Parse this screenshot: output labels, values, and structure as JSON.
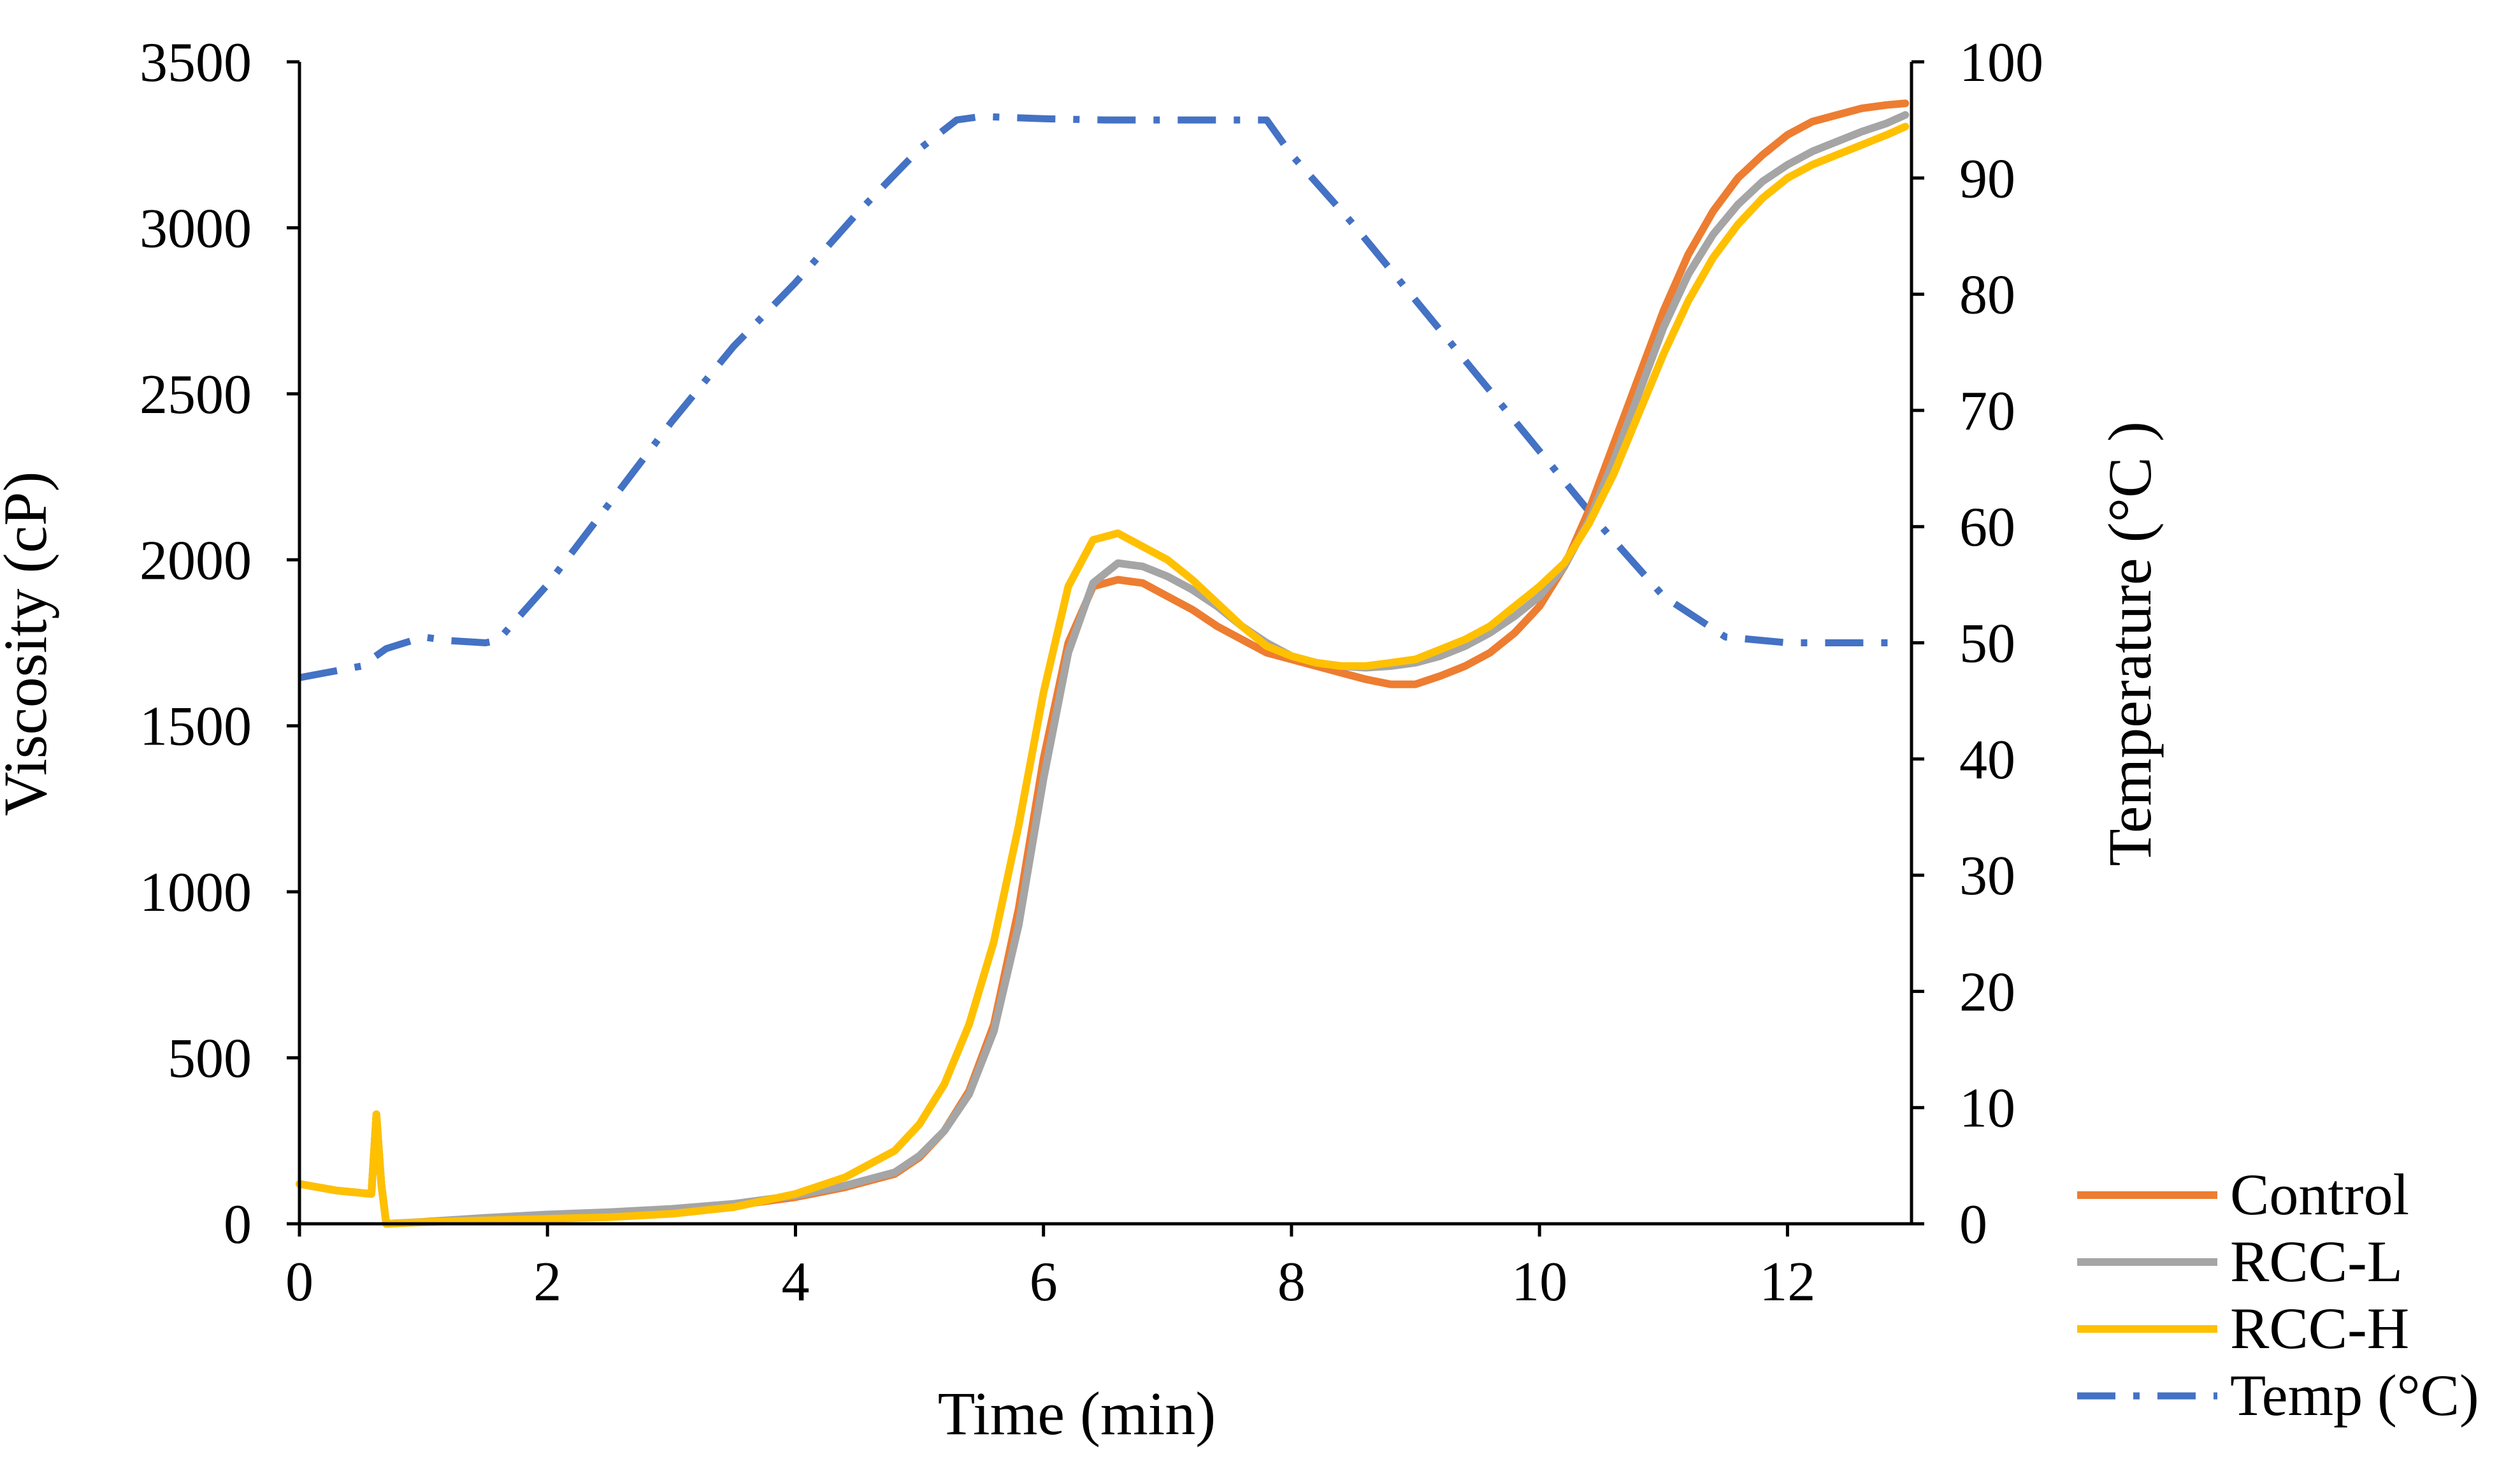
{
  "chart_data": {
    "type": "line",
    "title": "",
    "xlabel": "Time (min)",
    "ylabel": "Viscosity (cP)",
    "y2label": "Temperature (°C )",
    "xlim": [
      0,
      13
    ],
    "ylim": [
      0,
      3500
    ],
    "y2lim": [
      0,
      100
    ],
    "x_ticks": [
      0,
      2,
      4,
      6,
      8,
      10,
      12
    ],
    "y_ticks": [
      0,
      500,
      1000,
      1500,
      2000,
      2500,
      3000,
      3500
    ],
    "y2_ticks": [
      0,
      10,
      20,
      30,
      40,
      50,
      60,
      70,
      80,
      90,
      100
    ],
    "grid": false,
    "legend_position": "bottom-right",
    "series": [
      {
        "name": "Control",
        "axis": "left",
        "color": "#ED7D31",
        "dash": "solid",
        "x": [
          0,
          0.3,
          0.58,
          0.62,
          0.66,
          0.7,
          1.0,
          1.5,
          2.0,
          2.5,
          3.0,
          3.5,
          4.0,
          4.4,
          4.8,
          5.0,
          5.2,
          5.4,
          5.6,
          5.8,
          6.0,
          6.2,
          6.4,
          6.6,
          6.8,
          7.0,
          7.2,
          7.4,
          7.6,
          7.8,
          8.0,
          8.2,
          8.4,
          8.6,
          8.8,
          9.0,
          9.2,
          9.4,
          9.6,
          9.8,
          10.0,
          10.2,
          10.4,
          10.6,
          10.8,
          11.0,
          11.2,
          11.4,
          11.6,
          11.8,
          12.0,
          12.2,
          12.4,
          12.6,
          12.8,
          12.95
        ],
        "y": [
          120,
          100,
          90,
          330,
          120,
          0,
          5,
          15,
          25,
          30,
          40,
          55,
          80,
          110,
          150,
          200,
          280,
          400,
          600,
          950,
          1400,
          1750,
          1920,
          1940,
          1930,
          1890,
          1850,
          1800,
          1760,
          1720,
          1700,
          1680,
          1660,
          1640,
          1625,
          1625,
          1650,
          1680,
          1720,
          1780,
          1860,
          1980,
          2150,
          2350,
          2550,
          2750,
          2920,
          3050,
          3150,
          3220,
          3280,
          3320,
          3340,
          3360,
          3370,
          3375
        ]
      },
      {
        "name": "RCC-L",
        "axis": "left",
        "color": "#A5A5A5",
        "dash": "solid",
        "x": [
          0,
          0.3,
          0.58,
          0.62,
          0.66,
          0.7,
          1.0,
          1.5,
          2.0,
          2.5,
          3.0,
          3.5,
          4.0,
          4.4,
          4.8,
          5.0,
          5.2,
          5.4,
          5.6,
          5.8,
          6.0,
          6.2,
          6.4,
          6.6,
          6.8,
          7.0,
          7.2,
          7.4,
          7.6,
          7.8,
          8.0,
          8.2,
          8.4,
          8.6,
          8.8,
          9.0,
          9.2,
          9.4,
          9.6,
          9.8,
          10.0,
          10.2,
          10.4,
          10.6,
          10.8,
          11.0,
          11.2,
          11.4,
          11.6,
          11.8,
          12.0,
          12.2,
          12.4,
          12.6,
          12.8,
          12.95
        ],
        "y": [
          120,
          100,
          90,
          330,
          120,
          0,
          6,
          18,
          28,
          35,
          45,
          60,
          85,
          115,
          155,
          205,
          280,
          390,
          580,
          900,
          1340,
          1720,
          1930,
          1990,
          1980,
          1950,
          1910,
          1860,
          1800,
          1750,
          1710,
          1690,
          1680,
          1675,
          1680,
          1690,
          1710,
          1740,
          1780,
          1830,
          1890,
          1980,
          2120,
          2300,
          2500,
          2700,
          2860,
          2980,
          3070,
          3140,
          3190,
          3230,
          3260,
          3290,
          3315,
          3340
        ]
      },
      {
        "name": "RCC-H",
        "axis": "left",
        "color": "#FFC000",
        "dash": "solid",
        "x": [
          0,
          0.3,
          0.58,
          0.62,
          0.66,
          0.7,
          1.0,
          1.5,
          2.0,
          2.5,
          3.0,
          3.5,
          4.0,
          4.4,
          4.8,
          5.0,
          5.2,
          5.4,
          5.6,
          5.8,
          6.0,
          6.2,
          6.4,
          6.6,
          6.8,
          7.0,
          7.2,
          7.4,
          7.6,
          7.8,
          8.0,
          8.2,
          8.4,
          8.6,
          8.8,
          9.0,
          9.2,
          9.4,
          9.6,
          9.8,
          10.0,
          10.2,
          10.4,
          10.6,
          10.8,
          11.0,
          11.2,
          11.4,
          11.6,
          11.8,
          12.0,
          12.2,
          12.4,
          12.6,
          12.8,
          12.95
        ],
        "y": [
          120,
          100,
          90,
          330,
          120,
          0,
          5,
          10,
          15,
          20,
          30,
          50,
          90,
          140,
          220,
          300,
          420,
          600,
          850,
          1200,
          1600,
          1920,
          2060,
          2080,
          2040,
          2000,
          1940,
          1870,
          1800,
          1740,
          1710,
          1690,
          1680,
          1680,
          1690,
          1700,
          1730,
          1760,
          1800,
          1860,
          1920,
          1990,
          2110,
          2260,
          2440,
          2620,
          2780,
          2910,
          3010,
          3090,
          3150,
          3190,
          3220,
          3250,
          3280,
          3305
        ]
      },
      {
        "name": "Temp (°C)",
        "axis": "right",
        "color": "#4472C4",
        "dash": "dashdot",
        "x": [
          0,
          0.5,
          0.7,
          1.0,
          1.2,
          1.5,
          1.6,
          2.0,
          2.5,
          3.0,
          3.5,
          4.0,
          4.5,
          5.0,
          5.3,
          5.5,
          6.0,
          6.5,
          7.0,
          7.5,
          7.8,
          8.0,
          8.5,
          9.0,
          9.5,
          10.0,
          10.5,
          11.0,
          11.5,
          11.8,
          12.0,
          12.5,
          12.95
        ],
        "y": [
          47,
          48,
          49.5,
          50.5,
          50.2,
          50,
          50.2,
          55,
          62,
          69,
          75.5,
          81,
          87,
          92.5,
          95,
          95.3,
          95.1,
          95,
          95,
          95,
          95,
          92,
          86,
          79.5,
          73,
          66.5,
          60,
          54,
          50.5,
          50.2,
          50,
          50,
          50
        ]
      }
    ]
  }
}
